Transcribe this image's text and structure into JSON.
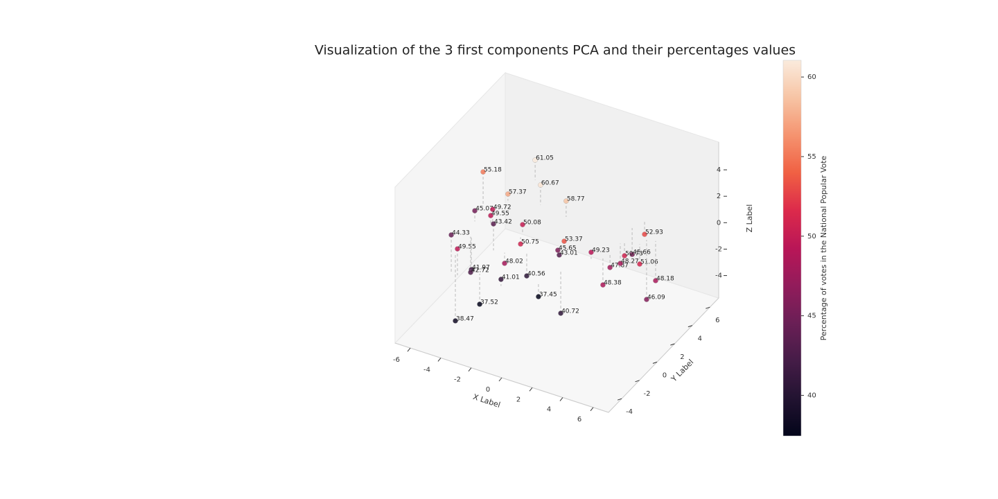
{
  "chart_data": {
    "type": "scatter3d",
    "title": "Visualization of the 3 first components PCA and their percentages values",
    "xlabel": "X Label",
    "ylabel": "Y Label",
    "zlabel": "Z Label",
    "colorbar_label": "Percentage of votes in the National Popular Vote",
    "colormap": "rocket",
    "xlim": [
      -7,
      7
    ],
    "ylim": [
      -5.5,
      7
    ],
    "zlim": [
      -5.7,
      6.1
    ],
    "clim": [
      37.45,
      61.05
    ],
    "xticks": [
      -6,
      -4,
      -2,
      0,
      2,
      4,
      6
    ],
    "yticks": [
      -4,
      -2,
      0,
      2,
      4,
      6
    ],
    "zticks": [
      -4,
      -2,
      0,
      2,
      4
    ],
    "cticks": [
      40,
      45,
      50,
      55,
      60
    ],
    "x": [
      -5.56,
      -4.23,
      -2.76,
      -4.59,
      -0.9,
      -5.25,
      -4.17,
      -4.35,
      -2.92,
      -2.26,
      -3.99,
      -3.52,
      -4.69,
      -4.72,
      -2.19,
      -2.25,
      -0.83,
      -1.11,
      0.49,
      0.48,
      0.4,
      0.92,
      1.37,
      -2.48,
      -4.61,
      2.37,
      3.22,
      2.93,
      3.25,
      3.09,
      3.09,
      4.09,
      2.94,
      4.73,
      4.23
    ],
    "y": [
      2.0,
      5.6,
      3.67,
      3.14,
      3.36,
      0.52,
      0.68,
      0.77,
      -1.39,
      0.77,
      -4.33,
      -4.44,
      -0.84,
      -0.87,
      0.42,
      -1.29,
      -4.15,
      -0.75,
      0.73,
      0.03,
      0.33,
      -2.93,
      -1.18,
      -3.72,
      -2.79,
      0.54,
      5.13,
      4.22,
      2.8,
      1.43,
      2.6,
      3.07,
      0.89,
      3.77,
      3.61
    ],
    "z": [
      2.6,
      1.5,
      1.5,
      0.5,
      1.2,
      0.8,
      1.2,
      0.6,
      2.0,
      0.7,
      2.8,
      2.0,
      -2.5,
      -2.7,
      -0.5,
      -0.8,
      0.5,
      -1.7,
      0.5,
      0.3,
      -0.3,
      -1,
      -3.3,
      -2.3,
      -5,
      0.5,
      -1,
      -2,
      -1,
      -1,
      -1.5,
      -1.5,
      -2,
      -3,
      -4.5
    ],
    "values": [
      55.18,
      61.05,
      60.67,
      57.37,
      58.77,
      45.07,
      49.72,
      49.55,
      43.42,
      50.08,
      44.33,
      49.55,
      41.97,
      42.72,
      50.75,
      48.02,
      41.01,
      40.56,
      53.37,
      45.65,
      43.01,
      37.45,
      40.72,
      37.52,
      38.47,
      49.23,
      52.93,
      45.66,
      50.73,
      47.87,
      48.27,
      51.06,
      48.38,
      48.18,
      46.09
    ]
  }
}
